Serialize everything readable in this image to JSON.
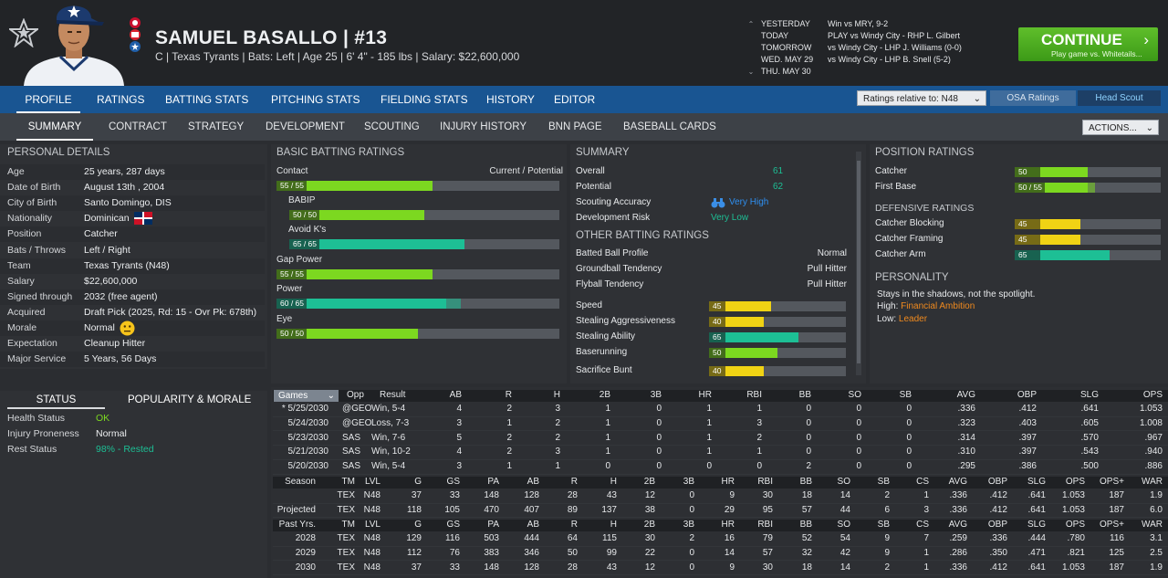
{
  "player": {
    "name": "SAMUEL BASALLO",
    "number": "#13",
    "subtitle": "C | Texas Tyrants  |  Bats: Left  |  Age 25  |  6' 4\" - 185 lbs  |  Salary: $22,600,000"
  },
  "schedule": [
    {
      "day": "YESTERDAY",
      "text": "Win vs MRY, 9-2"
    },
    {
      "day": "TODAY",
      "text": "PLAY vs Windy City - RHP L. Gilbert"
    },
    {
      "day": "TOMORROW",
      "text": "vs Windy City - LHP J. Williams (0-0)"
    },
    {
      "day": "WED. MAY 29",
      "text": "vs Windy City - LHP B. Snell (5-2)"
    },
    {
      "day": "THU. MAY 30",
      "text": ""
    }
  ],
  "continue": {
    "label": "CONTINUE",
    "sub": "Play game vs. Whitetails..."
  },
  "nav_main": [
    "PROFILE",
    "RATINGS",
    "BATTING STATS",
    "PITCHING STATS",
    "FIELDING STATS",
    "HISTORY",
    "EDITOR"
  ],
  "controls": {
    "relative": "Ratings relative to: N48",
    "osa": "OSA Ratings",
    "scout": "Head Scout",
    "actions": "ACTIONS..."
  },
  "nav_sub": [
    "SUMMARY",
    "CONTRACT",
    "STRATEGY",
    "DEVELOPMENT",
    "SCOUTING",
    "INJURY HISTORY",
    "BNN PAGE",
    "BASEBALL CARDS"
  ],
  "personal": {
    "title": "PERSONAL DETAILS",
    "rows": [
      {
        "k": "Age",
        "v": "25 years, 287 days"
      },
      {
        "k": "Date of Birth",
        "v": "August 13th , 2004"
      },
      {
        "k": "City of Birth",
        "v": "Santo Domingo, DIS"
      },
      {
        "k": "Nationality",
        "v": "Dominican"
      },
      {
        "k": "Position",
        "v": "Catcher"
      },
      {
        "k": "Bats / Throws",
        "v": "Left / Right"
      },
      {
        "k": "Team",
        "v": "Texas Tyrants (N48)"
      },
      {
        "k": "Salary",
        "v": "$22,600,000"
      },
      {
        "k": "Signed through",
        "v": "2032 (free agent)"
      },
      {
        "k": "Acquired",
        "v": "Draft Pick (2025, Rd: 15 - Ovr Pk: 678th)"
      },
      {
        "k": "Morale",
        "v": "Normal"
      },
      {
        "k": "Expectation",
        "v": "Cleanup Hitter"
      },
      {
        "k": "Major Service",
        "v": "5 Years, 56 Days"
      }
    ]
  },
  "status": {
    "tab1": "STATUS",
    "tab2": "POPULARITY & MORALE",
    "rows": [
      {
        "k": "Health Status",
        "v": "OK"
      },
      {
        "k": "Injury Proneness",
        "v": "Normal"
      },
      {
        "k": "Rest Status",
        "v": "98% - Rested"
      }
    ]
  },
  "batting": {
    "title": "BASIC BATTING RATINGS",
    "cp_label": "Current / Potential",
    "rows": [
      {
        "label": "Contact",
        "cur": 55,
        "pot": 55,
        "text": "55 / 55",
        "color": "#7cd820",
        "indent": 0
      },
      {
        "label": "BABIP",
        "cur": 50,
        "pot": 50,
        "text": "50 / 50",
        "color": "#7cd820",
        "indent": 1
      },
      {
        "label": "Avoid K's",
        "cur": 65,
        "pot": 65,
        "text": "65 / 65",
        "color": "#1dbf95",
        "indent": 1
      },
      {
        "label": "Gap Power",
        "cur": 55,
        "pot": 55,
        "text": "55 / 55",
        "color": "#7cd820",
        "indent": 0
      },
      {
        "label": "Power",
        "cur": 60,
        "pot": 65,
        "text": "60 / 65",
        "color": "#1dbf95",
        "indent": 0
      },
      {
        "label": "Eye",
        "cur": 50,
        "pot": 50,
        "text": "50 / 50",
        "color": "#7cd820",
        "indent": 0
      }
    ]
  },
  "summary": {
    "title": "SUMMARY",
    "rows": [
      {
        "k": "Overall",
        "v": "61"
      },
      {
        "k": "Potential",
        "v": "62"
      },
      {
        "k": "Scouting Accuracy",
        "v": "Very High"
      },
      {
        "k": "Development Risk",
        "v": "Very Low"
      }
    ]
  },
  "other": {
    "title": "OTHER BATTING RATINGS",
    "rows": [
      {
        "k": "Batted Ball Profile",
        "v": "Normal"
      },
      {
        "k": "Groundball Tendency",
        "v": "Pull Hitter"
      },
      {
        "k": "Flyball Tendency",
        "v": "Pull Hitter"
      }
    ],
    "bars": [
      {
        "k": "Speed",
        "v": 45,
        "color": "#f0d314"
      },
      {
        "k": "Stealing Aggressiveness",
        "v": 40,
        "color": "#f0d314"
      },
      {
        "k": "Stealing Ability",
        "v": 65,
        "color": "#1dbf95"
      },
      {
        "k": "Baserunning",
        "v": 50,
        "color": "#7cd820"
      },
      {
        "k": "Sacrifice Bunt",
        "v": 40,
        "color": "#f0d314"
      }
    ]
  },
  "position": {
    "title": "POSITION RATINGS",
    "rows": [
      {
        "k": "Catcher",
        "cur": 50,
        "pot": 50,
        "text": "50",
        "color": "#7cd820"
      },
      {
        "k": "First Base",
        "cur": 50,
        "pot": 55,
        "text": "50 / 55",
        "color": "#7cd820"
      }
    ],
    "def_title": "DEFENSIVE RATINGS",
    "def": [
      {
        "k": "Catcher Blocking",
        "cur": 45,
        "text": "45",
        "color": "#f0d314"
      },
      {
        "k": "Catcher Framing",
        "cur": 45,
        "text": "45",
        "color": "#f0d314"
      },
      {
        "k": "Catcher Arm",
        "cur": 65,
        "text": "65",
        "color": "#1dbf95"
      }
    ]
  },
  "personality": {
    "title": "PERSONALITY",
    "line": "Stays in the shadows, not the spotlight.",
    "high_label": "High:",
    "high": "Financial Ambition",
    "low_label": "Low:",
    "low": "Leader"
  },
  "games": {
    "dropdown": "Games",
    "headers": [
      "Opp",
      "Result",
      "AB",
      "R",
      "H",
      "2B",
      "3B",
      "HR",
      "RBI",
      "BB",
      "SO",
      "SB",
      "AVG",
      "OBP",
      "SLG",
      "OPS"
    ],
    "rows": [
      [
        "* 5/25/2030",
        "@GEO",
        "Win, 5-4",
        "4",
        "2",
        "3",
        "1",
        "0",
        "1",
        "1",
        "0",
        "0",
        "0",
        ".336",
        ".412",
        ".641",
        "1.053"
      ],
      [
        "5/24/2030",
        "@GEO",
        "Loss, 7-3",
        "3",
        "1",
        "2",
        "1",
        "0",
        "1",
        "3",
        "0",
        "0",
        "0",
        ".323",
        ".403",
        ".605",
        "1.008"
      ],
      [
        "5/23/2030",
        "SAS",
        "Win, 7-6",
        "5",
        "2",
        "2",
        "1",
        "0",
        "1",
        "2",
        "0",
        "0",
        "0",
        ".314",
        ".397",
        ".570",
        ".967"
      ],
      [
        "5/21/2030",
        "SAS",
        "Win, 10-2",
        "4",
        "2",
        "3",
        "1",
        "0",
        "1",
        "1",
        "0",
        "0",
        "0",
        ".310",
        ".397",
        ".543",
        ".940"
      ],
      [
        "5/20/2030",
        "SAS",
        "Win, 5-4",
        "3",
        "1",
        "1",
        "0",
        "0",
        "0",
        "0",
        "2",
        "0",
        "0",
        ".295",
        ".386",
        ".500",
        ".886"
      ]
    ]
  },
  "season": {
    "headers": [
      "Season",
      "TM",
      "LVL",
      "G",
      "GS",
      "PA",
      "AB",
      "R",
      "H",
      "2B",
      "3B",
      "HR",
      "RBI",
      "BB",
      "SO",
      "SB",
      "CS",
      "AVG",
      "OBP",
      "SLG",
      "OPS",
      "OPS+",
      "WAR"
    ],
    "rows": [
      [
        "",
        "TEX",
        "N48",
        "37",
        "33",
        "148",
        "128",
        "28",
        "43",
        "12",
        "0",
        "9",
        "30",
        "18",
        "14",
        "2",
        "1",
        ".336",
        ".412",
        ".641",
        "1.053",
        "187",
        "1.9"
      ],
      [
        "Projected",
        "TEX",
        "N48",
        "118",
        "105",
        "470",
        "407",
        "89",
        "137",
        "38",
        "0",
        "29",
        "95",
        "57",
        "44",
        "6",
        "3",
        ".336",
        ".412",
        ".641",
        "1.053",
        "187",
        "6.0"
      ]
    ]
  },
  "past": {
    "headers": [
      "Past Yrs.",
      "TM",
      "LVL",
      "G",
      "GS",
      "PA",
      "AB",
      "R",
      "H",
      "2B",
      "3B",
      "HR",
      "RBI",
      "BB",
      "SO",
      "SB",
      "CS",
      "AVG",
      "OBP",
      "SLG",
      "OPS",
      "OPS+",
      "WAR"
    ],
    "rows": [
      [
        "2028",
        "TEX",
        "N48",
        "129",
        "116",
        "503",
        "444",
        "64",
        "115",
        "30",
        "2",
        "16",
        "79",
        "52",
        "54",
        "9",
        "7",
        ".259",
        ".336",
        ".444",
        ".780",
        "116",
        "3.1"
      ],
      [
        "2029",
        "TEX",
        "N48",
        "112",
        "76",
        "383",
        "346",
        "50",
        "99",
        "22",
        "0",
        "14",
        "57",
        "32",
        "42",
        "9",
        "1",
        ".286",
        ".350",
        ".471",
        ".821",
        "125",
        "2.5"
      ],
      [
        "2030",
        "TEX",
        "N48",
        "37",
        "33",
        "148",
        "128",
        "28",
        "43",
        "12",
        "0",
        "9",
        "30",
        "18",
        "14",
        "2",
        "1",
        ".336",
        ".412",
        ".641",
        "1.053",
        "187",
        "1.9"
      ]
    ]
  },
  "colors": {
    "nav": "#195592",
    "accent_green": "#7cd820",
    "teal": "#1dbf95",
    "yellow": "#f0d314",
    "orange": "#f08a1e"
  }
}
